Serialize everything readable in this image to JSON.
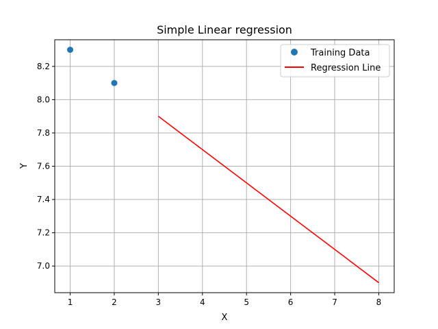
{
  "chart_data": {
    "type": "scatter",
    "title": "Simple Linear regression",
    "xlabel": "X",
    "ylabel": "Y",
    "xlim": [
      0.65,
      8.35
    ],
    "ylim": [
      6.84,
      8.36
    ],
    "x_ticks": [
      1,
      2,
      3,
      4,
      5,
      6,
      7,
      8
    ],
    "y_ticks": [
      7.0,
      7.2,
      7.4,
      7.6,
      7.8,
      8.0,
      8.2
    ],
    "grid": true,
    "legend_position": "top-right",
    "series": [
      {
        "name": "Training Data",
        "kind": "scatter",
        "color": "#1f77b4",
        "points": [
          {
            "x": 1,
            "y": 8.3
          },
          {
            "x": 2,
            "y": 8.1
          }
        ]
      },
      {
        "name": "Regression Line",
        "kind": "line",
        "color": "#ff0000",
        "points": [
          {
            "x": 3,
            "y": 7.9
          },
          {
            "x": 8,
            "y": 6.9
          }
        ]
      }
    ]
  }
}
